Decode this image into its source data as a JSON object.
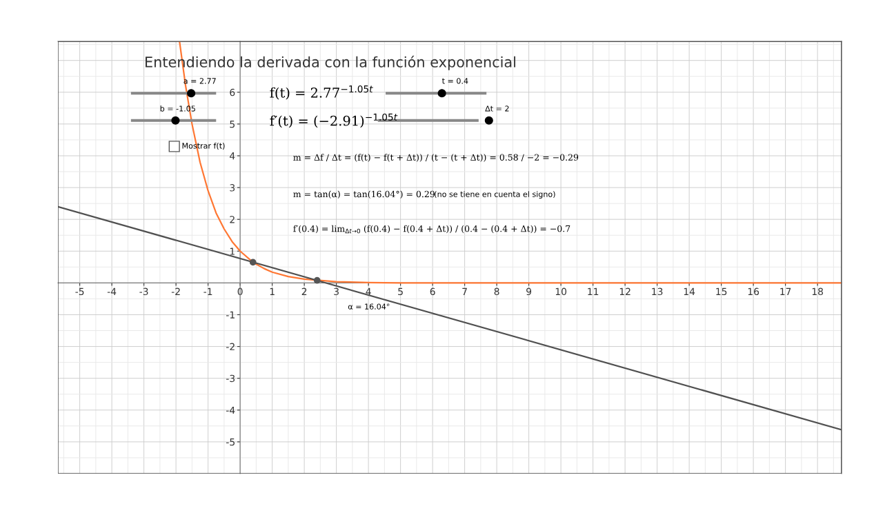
{
  "chart_data": {
    "type": "line",
    "title": "Entendiendo la derivada con la función exponencial",
    "series": [
      {
        "color": "#ff7733",
        "x": [
          -1.89,
          -1.7,
          -1.5,
          -1.25,
          -1.0,
          -0.75,
          -0.5,
          -0.25,
          0,
          0.4,
          0.75,
          1.0,
          1.5,
          2.0,
          3.0,
          4.0,
          5.0,
          6.0,
          8.0,
          18.75
        ],
        "values": [
          7.6,
          6.2,
          5.0,
          3.8,
          2.9,
          2.2,
          1.7,
          1.3,
          1.0,
          0.65,
          0.45,
          0.34,
          0.2,
          0.12,
          0.04,
          0.01,
          0,
          0,
          0,
          0
        ]
      },
      {
        "color": "#505050",
        "x": [
          -5.68,
          18.75
        ],
        "values": [
          2.4,
          -4.62
        ]
      },
      {
        "type": "scatter",
        "color": "#555555",
        "x": [
          0.4,
          2.4
        ],
        "values": [
          0.65,
          0.08
        ]
      }
    ],
    "xlim": [
      -5.68,
      18.75
    ],
    "ylim": [
      -6.0,
      7.6
    ],
    "xticks": [
      -5,
      -4,
      -3,
      -2,
      -1,
      0,
      1,
      2,
      3,
      4,
      5,
      6,
      7,
      8,
      9,
      10,
      11,
      12,
      13,
      14,
      15,
      16,
      17,
      18
    ],
    "yticks": [
      -5,
      -4,
      -3,
      -2,
      -1,
      1,
      2,
      3,
      4,
      5,
      6
    ],
    "grid": true,
    "annotations": [
      "α = 16.04°",
      "a = 2.77",
      "b = -1.05",
      "t = 0.4",
      "Δt = 2",
      "Mostrar f(t)",
      "f(t) = 2.77$^{−1.05t}$",
      "f′(t) = (−2.91)$^{−1.05t}$",
      "m = Δf / Δt = (f(t) − f(t + Δt)) / (t − (t + Δt)) = 0.58 / −2 = −0.29",
      "m = tan(α) = tan(16.04°) = 0.29",
      "(no se tiene en cuenta el signo)",
      "f′(0.4) = lim$_{Δt→0}$ (f(0.4) − f(0.4 + Δt)) / (0.4 − (0.4 + Δt)) = −0.7"
    ]
  }
}
